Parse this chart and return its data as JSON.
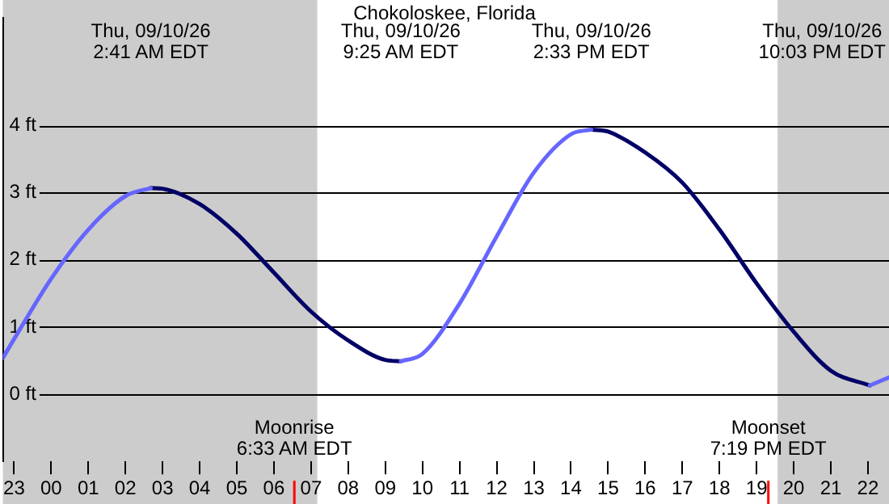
{
  "chart_data": {
    "type": "line",
    "title": "Chokoloskee, Florida",
    "xlim": [
      "--09-09T22:42",
      "--09-10T22:34"
    ],
    "xticks": [
      {
        "value": "--09-09T23:00",
        "label": "23"
      },
      {
        "value": "--09-10T00:00",
        "label": "00"
      },
      {
        "value": "--09-10T01:00",
        "label": "01"
      },
      {
        "value": "--09-10T02:00",
        "label": "02"
      },
      {
        "value": "--09-10T03:00",
        "label": "03"
      },
      {
        "value": "--09-10T04:00",
        "label": "04"
      },
      {
        "value": "--09-10T05:00",
        "label": "05"
      },
      {
        "value": "--09-10T06:00",
        "label": "06"
      },
      {
        "value": "--09-10T07:00",
        "label": "07"
      },
      {
        "value": "--09-10T08:00",
        "label": "08"
      },
      {
        "value": "--09-10T09:00",
        "label": "09"
      },
      {
        "value": "--09-10T10:00",
        "label": "10"
      },
      {
        "value": "--09-10T11:00",
        "label": "11"
      },
      {
        "value": "--09-10T12:00",
        "label": "12"
      },
      {
        "value": "--09-10T13:00",
        "label": "13"
      },
      {
        "value": "--09-10T14:00",
        "label": "14"
      },
      {
        "value": "--09-10T15:00",
        "label": "15"
      },
      {
        "value": "--09-10T16:00",
        "label": "16"
      },
      {
        "value": "--09-10T17:00",
        "label": "17"
      },
      {
        "value": "--09-10T18:00",
        "label": "18"
      },
      {
        "value": "--09-10T19:00",
        "label": "19"
      },
      {
        "value": "--09-10T20:00",
        "label": "20"
      },
      {
        "value": "--09-10T21:00",
        "label": "21"
      },
      {
        "value": "--09-10T22:00",
        "label": "22"
      }
    ],
    "ylim": [
      -1,
      5.6
    ],
    "yticks": [
      {
        "value": 0,
        "label": "0 ft"
      },
      {
        "value": 1,
        "label": "1 ft"
      },
      {
        "value": 2,
        "label": "2 ft"
      },
      {
        "value": 3,
        "label": "3 ft"
      },
      {
        "value": 4,
        "label": "4 ft"
      }
    ],
    "grid": "y",
    "legend": false,
    "marker": "none",
    "line_style": "solid",
    "series": [
      {
        "color": "#6666ff",
        "x": [
          "--09-09T22:42",
          "--09-09T23:00",
          "--09-10T00:00",
          "--09-10T01:00",
          "--09-10T02:00",
          "--09-10T02:41",
          "--09-10T05:00",
          "--09-10T09:25",
          "--09-10T10:00",
          "--09-10T11:00",
          "--09-10T12:00",
          "--09-10T13:00",
          "--09-10T14:00",
          "--09-10T14:33",
          "--09-10T18:00",
          "--09-10T22:03",
          "--09-10T22:34"
        ],
        "values": [
          0.54,
          0.82,
          1.72,
          2.45,
          2.95,
          3.07,
          null,
          0.49,
          0.6,
          1.35,
          2.35,
          3.3,
          3.87,
          3.94,
          null,
          0.13,
          0.25
        ]
      },
      {
        "color": "#000066",
        "x": [
          "--09-10T02:41",
          "--09-10T03:00",
          "--09-10T04:00",
          "--09-10T05:00",
          "--09-10T06:00",
          "--09-10T07:00",
          "--09-10T08:00",
          "--09-10T09:00",
          "--09-10T09:25",
          "--09-10T12:00",
          "--09-10T14:33",
          "--09-10T15:00",
          "--09-10T16:00",
          "--09-10T17:00",
          "--09-10T18:00",
          "--09-10T19:00",
          "--09-10T20:00",
          "--09-10T21:00",
          "--09-10T22:03"
        ],
        "values": [
          3.07,
          3.06,
          2.83,
          2.39,
          1.81,
          1.23,
          0.8,
          0.51,
          0.49,
          null,
          3.94,
          3.91,
          3.6,
          3.15,
          2.45,
          1.65,
          0.93,
          0.35,
          0.13
        ]
      }
    ],
    "bands": [
      {
        "axis": "x",
        "from": "--09-09T22:42",
        "to": "--09-10T07:10",
        "color": "#cccccc"
      },
      {
        "axis": "x",
        "from": "--09-10T19:34",
        "to": "--09-10T22:34",
        "color": "#cccccc"
      }
    ],
    "ref_lines": [
      {
        "axis": "x",
        "value": "--09-10T06:33",
        "label": "Moonrise\n6:33 AM EDT",
        "color": "#ff0000"
      },
      {
        "axis": "x",
        "value": "--09-10T19:19",
        "label": "Moonset\n7:19 PM EDT",
        "color": "#ff0000"
      }
    ],
    "annotations": [
      "Thu, 09/10/26\n2:41 AM EDT",
      "Thu, 09/10/26\n9:25 AM EDT",
      "Thu, 09/10/26\n2:33 PM EDT",
      "Thu, 09/10/26\n10:03 PM EDT"
    ]
  }
}
